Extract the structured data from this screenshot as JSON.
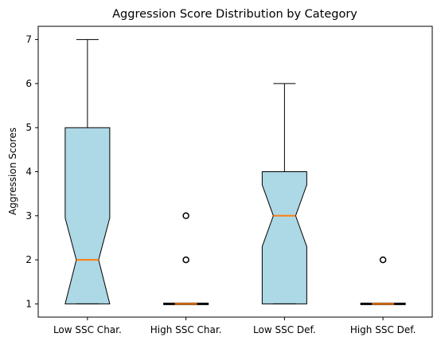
{
  "chart_data": {
    "type": "boxplot",
    "notched": true,
    "title": "Aggression Score Distribution by Category",
    "xlabel": "",
    "ylabel": "Aggression Scores",
    "ylim": [
      0.7,
      7.3
    ],
    "yticks": [
      1,
      2,
      3,
      4,
      5,
      6,
      7
    ],
    "grid": false,
    "categories": [
      "Low SSC Char.",
      "High SSC Char.",
      "Low SSC Def.",
      "High SSC Def."
    ],
    "boxes": [
      {
        "min": 1,
        "q1": 1,
        "median": 2,
        "q3": 5,
        "max": 7,
        "notch_low": 1.0,
        "notch_high": 2.95,
        "outliers": []
      },
      {
        "min": 1,
        "q1": 1,
        "median": 1,
        "q3": 1,
        "max": 1,
        "notch_low": 1.0,
        "notch_high": 1.0,
        "outliers": [
          2,
          3
        ]
      },
      {
        "min": 1,
        "q1": 1,
        "median": 3,
        "q3": 4,
        "max": 6,
        "notch_low": 2.3,
        "notch_high": 3.7,
        "outliers": []
      },
      {
        "min": 1,
        "q1": 1,
        "median": 1,
        "q3": 1,
        "max": 1,
        "notch_low": 1.0,
        "notch_high": 1.0,
        "outliers": [
          2
        ]
      }
    ],
    "colors": {
      "box_fill": "#add8e6",
      "median": "#ff7f0e",
      "edge": "#000000"
    }
  }
}
